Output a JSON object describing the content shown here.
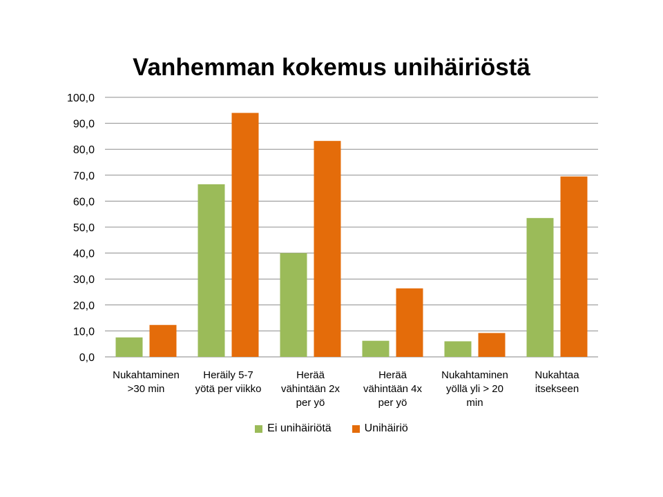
{
  "chart_data": {
    "type": "bar",
    "title": "Vanhemman kokemus unihäiriöstä",
    "categories": [
      [
        "Nukahtaminen",
        ">30 min"
      ],
      [
        "Heräily 5-7",
        "yötä per viikko"
      ],
      [
        "Herää",
        "vähintään 2x",
        "per yö"
      ],
      [
        "Herää",
        "vähintään 4x",
        "per yö"
      ],
      [
        "Nukahtaminen",
        "yöllä yli > 20",
        "min"
      ],
      [
        "Nukahtaa",
        "itsekseen"
      ]
    ],
    "series": [
      {
        "name": "Ei unihäiriötä",
        "color": "#9bbb59",
        "values": [
          7.5,
          66.5,
          40.0,
          6.2,
          6.0,
          53.5
        ]
      },
      {
        "name": "Unihäiriö",
        "color": "#e46c0a",
        "values": [
          12.3,
          94.0,
          83.2,
          26.4,
          9.2,
          69.5
        ]
      }
    ],
    "ylim": [
      0,
      100
    ],
    "yticks": [
      "0,0",
      "10,0",
      "20,0",
      "30,0",
      "40,0",
      "50,0",
      "60,0",
      "70,0",
      "80,0",
      "90,0",
      "100,0"
    ],
    "grid": true,
    "legend_position": "bottom"
  }
}
